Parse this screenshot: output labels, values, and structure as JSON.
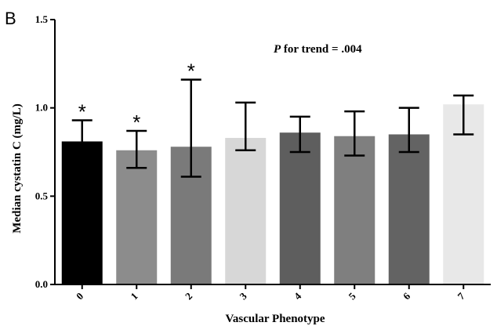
{
  "panel_label": "B",
  "annotation": {
    "p_label": "P",
    "p_text": " for trend = .004"
  },
  "colors": {
    "bars": [
      "#000000",
      "#8c8c8c",
      "#7a7a7a",
      "#d7d7d7",
      "#5e5e5e",
      "#7f7f7f",
      "#636363",
      "#e8e8e8"
    ],
    "axis": "#000000",
    "error_bar": "#000000"
  },
  "chart_data": {
    "type": "bar",
    "xlabel": "Vascular Phenotype",
    "ylabel": "Median cystatin C  (mg/L)",
    "categories": [
      "0",
      "1",
      "2",
      "3",
      "4",
      "5",
      "6",
      "7"
    ],
    "values": [
      0.81,
      0.76,
      0.78,
      0.83,
      0.86,
      0.84,
      0.85,
      1.02
    ],
    "error_low": [
      0.72,
      0.66,
      0.61,
      0.76,
      0.75,
      0.73,
      0.75,
      0.85
    ],
    "error_high": [
      0.93,
      0.87,
      1.16,
      1.03,
      0.95,
      0.98,
      1.0,
      1.07
    ],
    "significant": [
      true,
      true,
      true,
      false,
      false,
      false,
      false,
      false
    ],
    "significance_marker": "*",
    "ylim": [
      0.0,
      1.5
    ],
    "yticks": [
      "0.0",
      "0.5",
      "1.0",
      "1.5"
    ],
    "ytick_values": [
      0.0,
      0.5,
      1.0,
      1.5
    ],
    "grid": false
  }
}
